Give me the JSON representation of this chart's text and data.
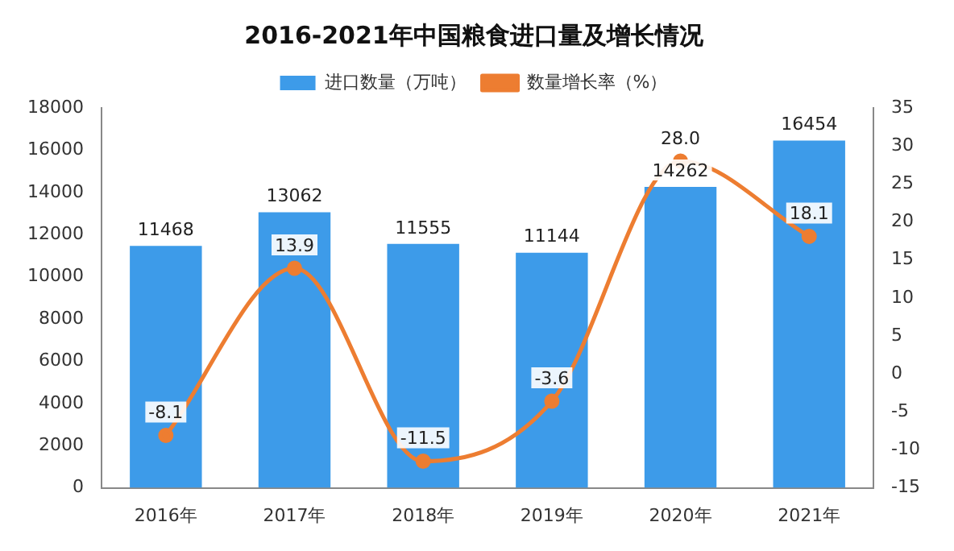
{
  "chart_data": {
    "type": "bar",
    "title": "2016-2021年中国粮食进口量及增长情况",
    "categories": [
      "2016年",
      "2017年",
      "2018年",
      "2019年",
      "2020年",
      "2021年"
    ],
    "series": [
      {
        "name": "进口数量（万吨）",
        "color": "#3d9be9",
        "values": [
          11468,
          13062,
          11555,
          11144,
          14262,
          16454
        ],
        "value_labels": [
          "11468",
          "13062",
          "11555",
          "11144",
          "14262",
          "16454"
        ]
      },
      {
        "name": "数量增长率（%）",
        "type": "line",
        "axis": "y2",
        "color": "#ed7d31",
        "marker": "circle",
        "values": [
          -8.1,
          13.9,
          -11.5,
          -3.6,
          28.0,
          18.1
        ],
        "value_labels": [
          "-8.1",
          "13.9",
          "-11.5",
          "-3.6",
          "28.0",
          "18.1"
        ]
      }
    ],
    "ylim": [
      0,
      18000
    ],
    "yticks": [
      0,
      2000,
      4000,
      6000,
      8000,
      10000,
      12000,
      14000,
      16000,
      18000
    ],
    "y2lim": [
      -15,
      35
    ],
    "y2ticks": [
      -15,
      -10,
      -5,
      0,
      5,
      10,
      15,
      20,
      25,
      30,
      35
    ],
    "legend": "top",
    "grid": false
  }
}
